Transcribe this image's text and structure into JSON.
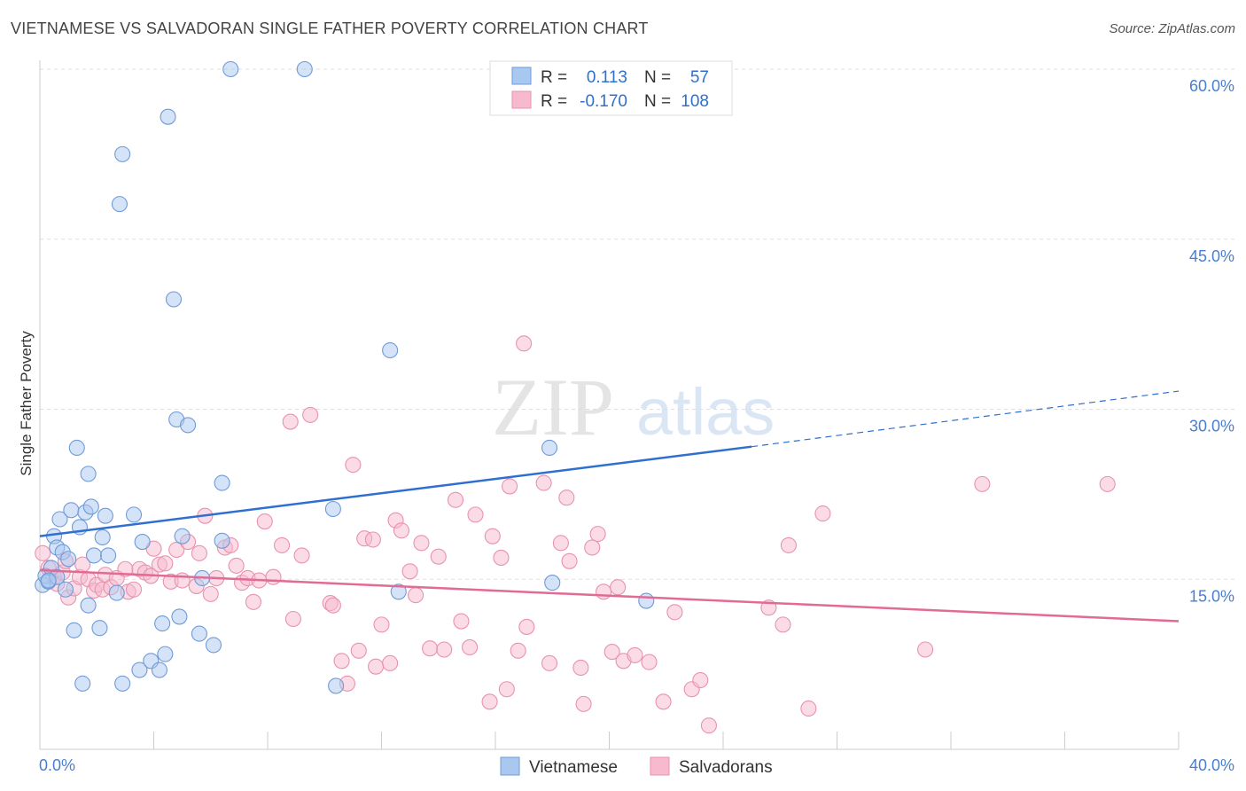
{
  "title": "VIETNAMESE VS SALVADORAN SINGLE FATHER POVERTY CORRELATION CHART",
  "source": "Source: ZipAtlas.com",
  "watermark": {
    "zip": "ZIP",
    "atlas": "atlas"
  },
  "colors": {
    "vietnamese_fill": "#a9c8f0",
    "vietnamese_stroke": "#6f9bd8",
    "vietnamese_line": "#2f6fd0",
    "salvadoran_fill": "#f7b9cd",
    "salvadoran_stroke": "#e892ae",
    "salvadoran_line": "#e26a96",
    "value_text": "#2f6fd0",
    "grid": "#dddddd"
  },
  "legend": {
    "rows": [
      {
        "r_label": "R =",
        "r_value": "0.113",
        "n_label": "N =",
        "n_value": "57"
      },
      {
        "r_label": "R =",
        "r_value": "-0.170",
        "n_label": "N =",
        "n_value": "108"
      }
    ]
  },
  "chart_data": {
    "type": "scatter",
    "title": "VIETNAMESE VS SALVADORAN SINGLE FATHER POVERTY CORRELATION CHART",
    "xlabel": "",
    "ylabel": "Single Father Poverty",
    "xlim": [
      0,
      40
    ],
    "ylim": [
      0,
      60
    ],
    "x_tick_labels": [
      "0.0%",
      "40.0%"
    ],
    "y_ticks": [
      15,
      30,
      45,
      60
    ],
    "y_tick_labels": [
      "15.0%",
      "30.0%",
      "45.0%",
      "60.0%"
    ],
    "grid": "horizontal dashed",
    "legend_position": "top-center",
    "series": [
      {
        "name": "Vietnamese",
        "r": 0.113,
        "n": 57,
        "trend": {
          "x0": 0,
          "y0": 18.8,
          "x1": 25,
          "y1": 26.7,
          "dashed_to_x": 40,
          "dashed_to_y": 31.6
        },
        "points": [
          [
            0.1,
            14.5
          ],
          [
            0.2,
            15.3
          ],
          [
            0.3,
            14.8
          ],
          [
            0.4,
            16.0
          ],
          [
            0.5,
            18.8
          ],
          [
            0.6,
            17.8
          ],
          [
            0.6,
            15.2
          ],
          [
            0.7,
            20.3
          ],
          [
            0.8,
            17.4
          ],
          [
            0.9,
            14.1
          ],
          [
            1.0,
            16.8
          ],
          [
            1.1,
            21.1
          ],
          [
            1.2,
            10.5
          ],
          [
            1.3,
            26.6
          ],
          [
            1.4,
            19.6
          ],
          [
            1.5,
            5.8
          ],
          [
            1.6,
            20.9
          ],
          [
            1.7,
            12.7
          ],
          [
            1.7,
            24.3
          ],
          [
            1.8,
            21.4
          ],
          [
            1.9,
            17.1
          ],
          [
            2.1,
            10.7
          ],
          [
            2.2,
            18.7
          ],
          [
            2.3,
            20.6
          ],
          [
            2.4,
            17.1
          ],
          [
            2.7,
            13.8
          ],
          [
            2.8,
            48.1
          ],
          [
            2.9,
            52.5
          ],
          [
            2.9,
            5.8
          ],
          [
            3.3,
            20.7
          ],
          [
            3.5,
            7.0
          ],
          [
            3.6,
            18.3
          ],
          [
            3.9,
            7.8
          ],
          [
            4.2,
            7.0
          ],
          [
            4.3,
            11.1
          ],
          [
            4.4,
            8.4
          ],
          [
            4.5,
            55.8
          ],
          [
            4.7,
            39.7
          ],
          [
            4.8,
            29.1
          ],
          [
            4.9,
            11.7
          ],
          [
            5.0,
            18.8
          ],
          [
            5.2,
            28.6
          ],
          [
            5.6,
            10.2
          ],
          [
            5.7,
            15.1
          ],
          [
            6.1,
            9.2
          ],
          [
            6.4,
            23.5
          ],
          [
            6.4,
            18.4
          ],
          [
            6.7,
            60.0
          ],
          [
            9.3,
            60.0
          ],
          [
            10.3,
            21.2
          ],
          [
            10.4,
            5.6
          ],
          [
            12.3,
            35.2
          ],
          [
            12.6,
            13.9
          ],
          [
            17.9,
            26.6
          ],
          [
            18.0,
            14.7
          ],
          [
            21.3,
            13.1
          ],
          [
            0.3,
            14.9
          ]
        ]
      },
      {
        "name": "Salvadorans",
        "r": -0.17,
        "n": 108,
        "trend": {
          "x0": 0,
          "y0": 15.8,
          "x1": 40,
          "y1": 11.3
        },
        "points": [
          [
            0.1,
            17.3
          ],
          [
            0.3,
            16.0
          ],
          [
            0.5,
            15.2
          ],
          [
            0.6,
            14.6
          ],
          [
            0.8,
            15.6
          ],
          [
            0.9,
            16.6
          ],
          [
            1.0,
            13.4
          ],
          [
            1.2,
            14.2
          ],
          [
            1.4,
            15.2
          ],
          [
            1.5,
            16.3
          ],
          [
            1.7,
            15.0
          ],
          [
            1.9,
            14.0
          ],
          [
            2.0,
            14.5
          ],
          [
            2.2,
            14.1
          ],
          [
            2.3,
            15.4
          ],
          [
            2.5,
            14.3
          ],
          [
            2.7,
            15.1
          ],
          [
            3.0,
            15.9
          ],
          [
            3.1,
            13.9
          ],
          [
            3.3,
            14.1
          ],
          [
            3.5,
            15.9
          ],
          [
            3.7,
            15.6
          ],
          [
            3.9,
            15.3
          ],
          [
            4.0,
            17.7
          ],
          [
            4.2,
            16.3
          ],
          [
            4.4,
            16.4
          ],
          [
            4.6,
            14.8
          ],
          [
            4.8,
            17.6
          ],
          [
            5.0,
            14.9
          ],
          [
            5.2,
            18.3
          ],
          [
            5.5,
            14.4
          ],
          [
            5.6,
            17.3
          ],
          [
            5.8,
            20.6
          ],
          [
            6.0,
            13.7
          ],
          [
            6.2,
            15.1
          ],
          [
            6.5,
            17.8
          ],
          [
            6.7,
            18.0
          ],
          [
            6.9,
            16.2
          ],
          [
            7.1,
            14.7
          ],
          [
            7.3,
            15.1
          ],
          [
            7.5,
            13.0
          ],
          [
            7.7,
            14.9
          ],
          [
            7.9,
            20.1
          ],
          [
            8.2,
            15.2
          ],
          [
            8.5,
            18.0
          ],
          [
            8.8,
            28.9
          ],
          [
            8.9,
            11.5
          ],
          [
            9.2,
            17.1
          ],
          [
            9.5,
            29.5
          ],
          [
            10.2,
            12.9
          ],
          [
            10.3,
            12.7
          ],
          [
            10.6,
            7.8
          ],
          [
            10.8,
            5.8
          ],
          [
            11.0,
            25.1
          ],
          [
            11.2,
            8.7
          ],
          [
            11.4,
            18.6
          ],
          [
            11.7,
            18.5
          ],
          [
            11.8,
            7.3
          ],
          [
            12.0,
            11.0
          ],
          [
            12.3,
            7.6
          ],
          [
            12.5,
            20.2
          ],
          [
            12.7,
            19.3
          ],
          [
            13.0,
            15.7
          ],
          [
            13.2,
            13.6
          ],
          [
            13.4,
            18.2
          ],
          [
            13.7,
            8.9
          ],
          [
            14.0,
            17.0
          ],
          [
            14.2,
            8.8
          ],
          [
            14.6,
            22.0
          ],
          [
            14.8,
            11.3
          ],
          [
            15.1,
            9.0
          ],
          [
            15.3,
            20.7
          ],
          [
            15.8,
            4.2
          ],
          [
            15.9,
            18.8
          ],
          [
            16.2,
            16.9
          ],
          [
            16.4,
            5.3
          ],
          [
            16.5,
            23.2
          ],
          [
            16.8,
            8.7
          ],
          [
            17.0,
            35.8
          ],
          [
            17.1,
            10.8
          ],
          [
            17.7,
            23.5
          ],
          [
            17.9,
            7.6
          ],
          [
            18.3,
            18.2
          ],
          [
            18.5,
            22.2
          ],
          [
            18.6,
            16.6
          ],
          [
            19.0,
            7.2
          ],
          [
            19.1,
            4.0
          ],
          [
            19.4,
            17.8
          ],
          [
            19.6,
            19.0
          ],
          [
            19.8,
            13.9
          ],
          [
            20.1,
            8.6
          ],
          [
            20.3,
            14.3
          ],
          [
            20.5,
            7.8
          ],
          [
            20.9,
            8.3
          ],
          [
            21.4,
            7.7
          ],
          [
            21.9,
            4.2
          ],
          [
            22.3,
            12.1
          ],
          [
            22.9,
            5.3
          ],
          [
            23.2,
            6.1
          ],
          [
            23.5,
            2.1
          ],
          [
            25.6,
            12.5
          ],
          [
            26.1,
            11.0
          ],
          [
            26.3,
            18.0
          ],
          [
            27.0,
            3.6
          ],
          [
            27.5,
            20.8
          ],
          [
            31.1,
            8.8
          ],
          [
            33.1,
            23.4
          ],
          [
            37.5,
            23.4
          ]
        ]
      }
    ]
  },
  "bottom_legend": {
    "items": [
      {
        "label": "Vietnamese"
      },
      {
        "label": "Salvadorans"
      }
    ]
  }
}
